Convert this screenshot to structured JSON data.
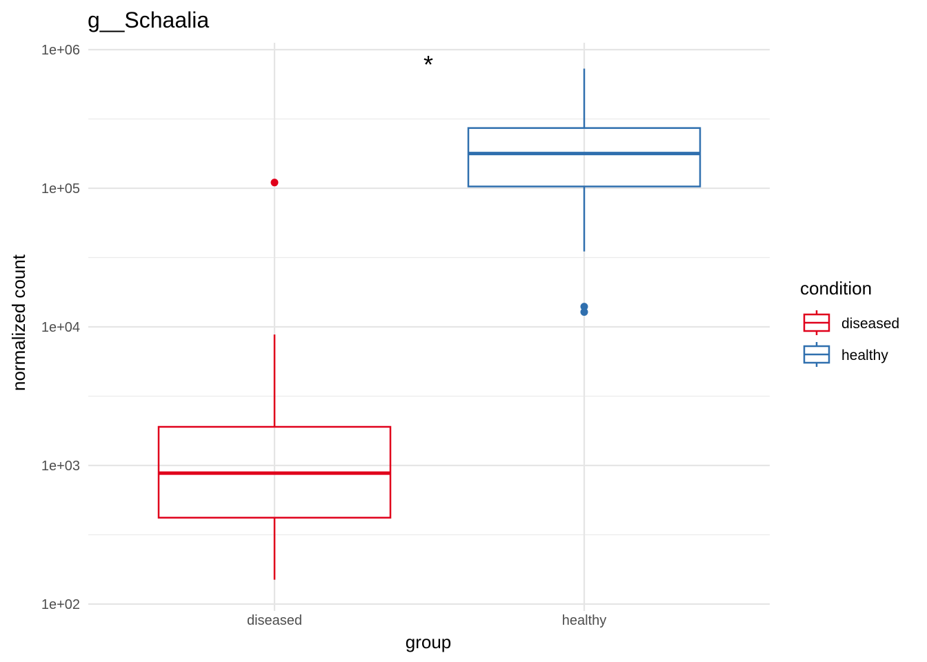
{
  "chart_data": {
    "type": "boxplot",
    "title": "g__Schaalia",
    "xlabel": "group",
    "ylabel": "normalized count",
    "y_scale": "log10",
    "ylim": [
      100,
      1000000
    ],
    "y_ticks": [
      100,
      1000,
      10000,
      100000,
      1000000
    ],
    "y_tick_labels": [
      "1e+02",
      "1e+03",
      "1e+04",
      "1e+05",
      "1e+06"
    ],
    "categories": [
      "diseased",
      "healthy"
    ],
    "grid": true,
    "significance_marker": "*",
    "legend": {
      "title": "condition",
      "position": "right",
      "entries": [
        "diseased",
        "healthy"
      ]
    },
    "series": [
      {
        "name": "diseased",
        "category": "diseased",
        "color": "#E0001B",
        "whisker_low": 150,
        "q1": 420,
        "median": 880,
        "q3": 1900,
        "whisker_high": 8800,
        "outliers": [
          110000
        ]
      },
      {
        "name": "healthy",
        "category": "healthy",
        "color": "#2F6FAE",
        "whisker_low": 35000,
        "q1": 103000,
        "median": 178000,
        "q3": 272000,
        "whisker_high": 730000,
        "outliers": [
          14000,
          12800
        ]
      }
    ]
  }
}
